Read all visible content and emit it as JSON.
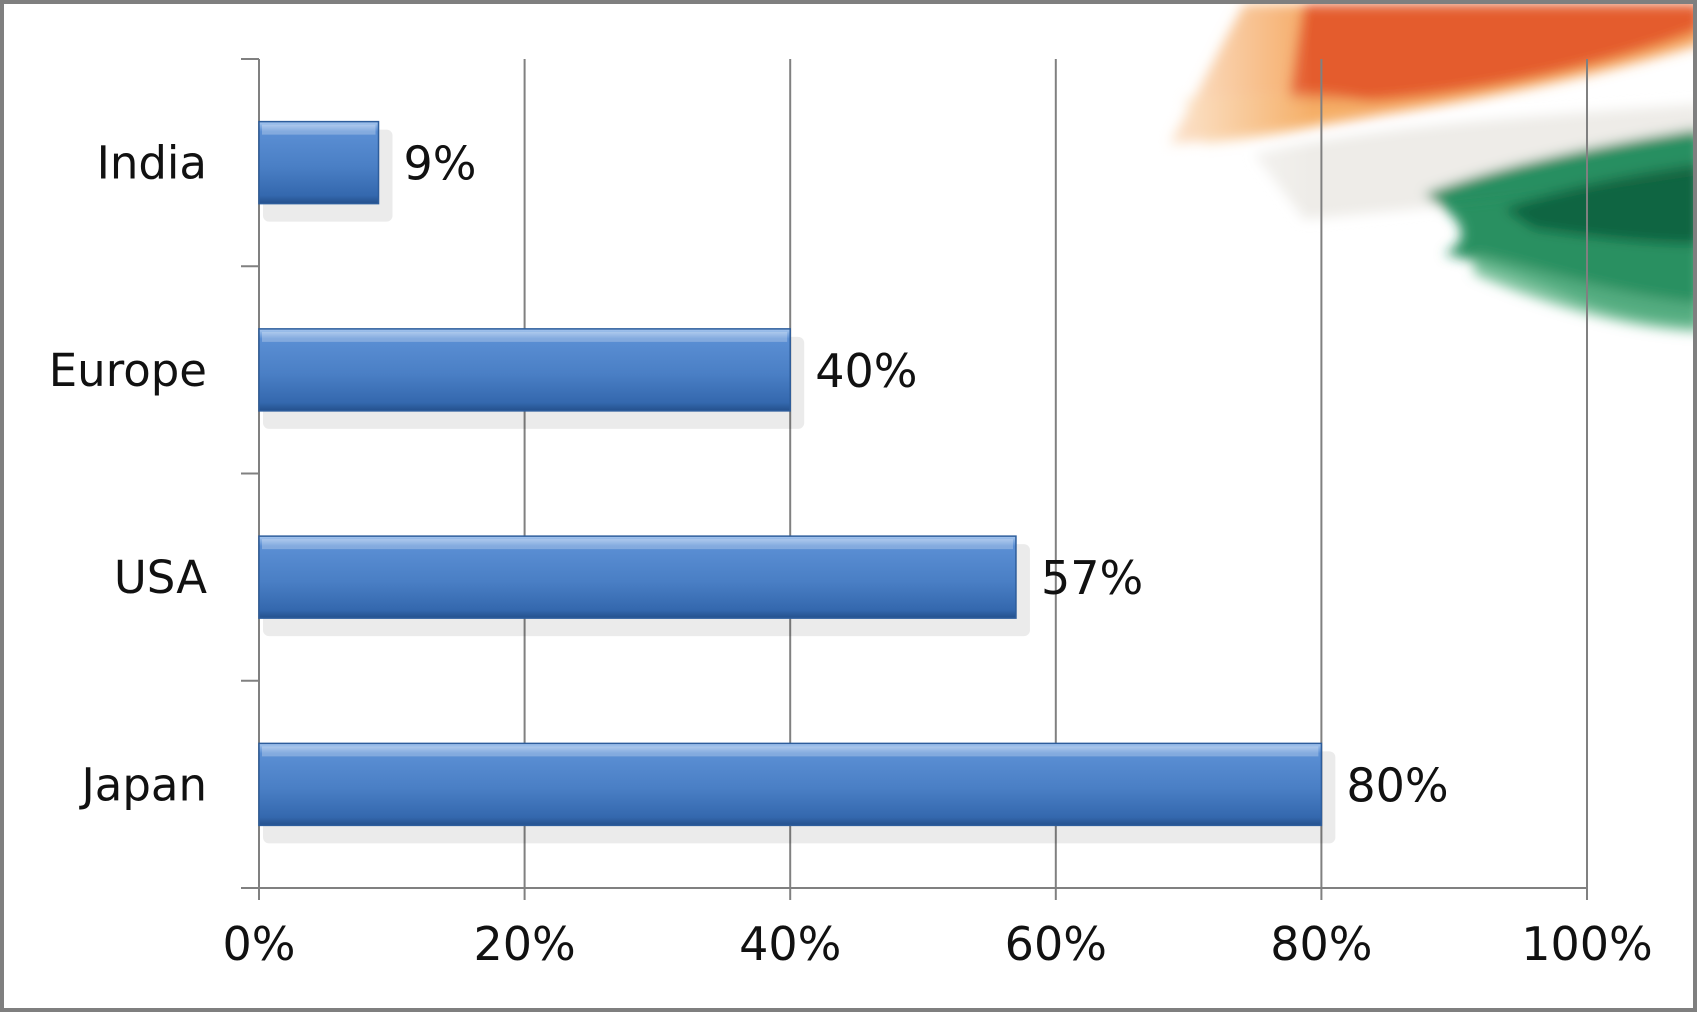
{
  "colors": {
    "bar": "#4a7fc5",
    "bar_dark": "#2d5d9c",
    "grid": "#808080",
    "frame": "#7f7f7f"
  },
  "decoration": "tricolor-brush-stroke",
  "chart_data": {
    "type": "bar",
    "orientation": "horizontal",
    "categories": [
      "India",
      "Europe",
      "USA",
      "Japan"
    ],
    "values": [
      9,
      40,
      57,
      80
    ],
    "data_labels": [
      "9%",
      "40%",
      "57%",
      "80%"
    ],
    "x_ticks": [
      "0%",
      "20%",
      "40%",
      "60%",
      "80%",
      "100%"
    ],
    "xlim": [
      0,
      100
    ],
    "grid": true,
    "legend": "none",
    "title": "",
    "xlabel": "",
    "ylabel": ""
  }
}
